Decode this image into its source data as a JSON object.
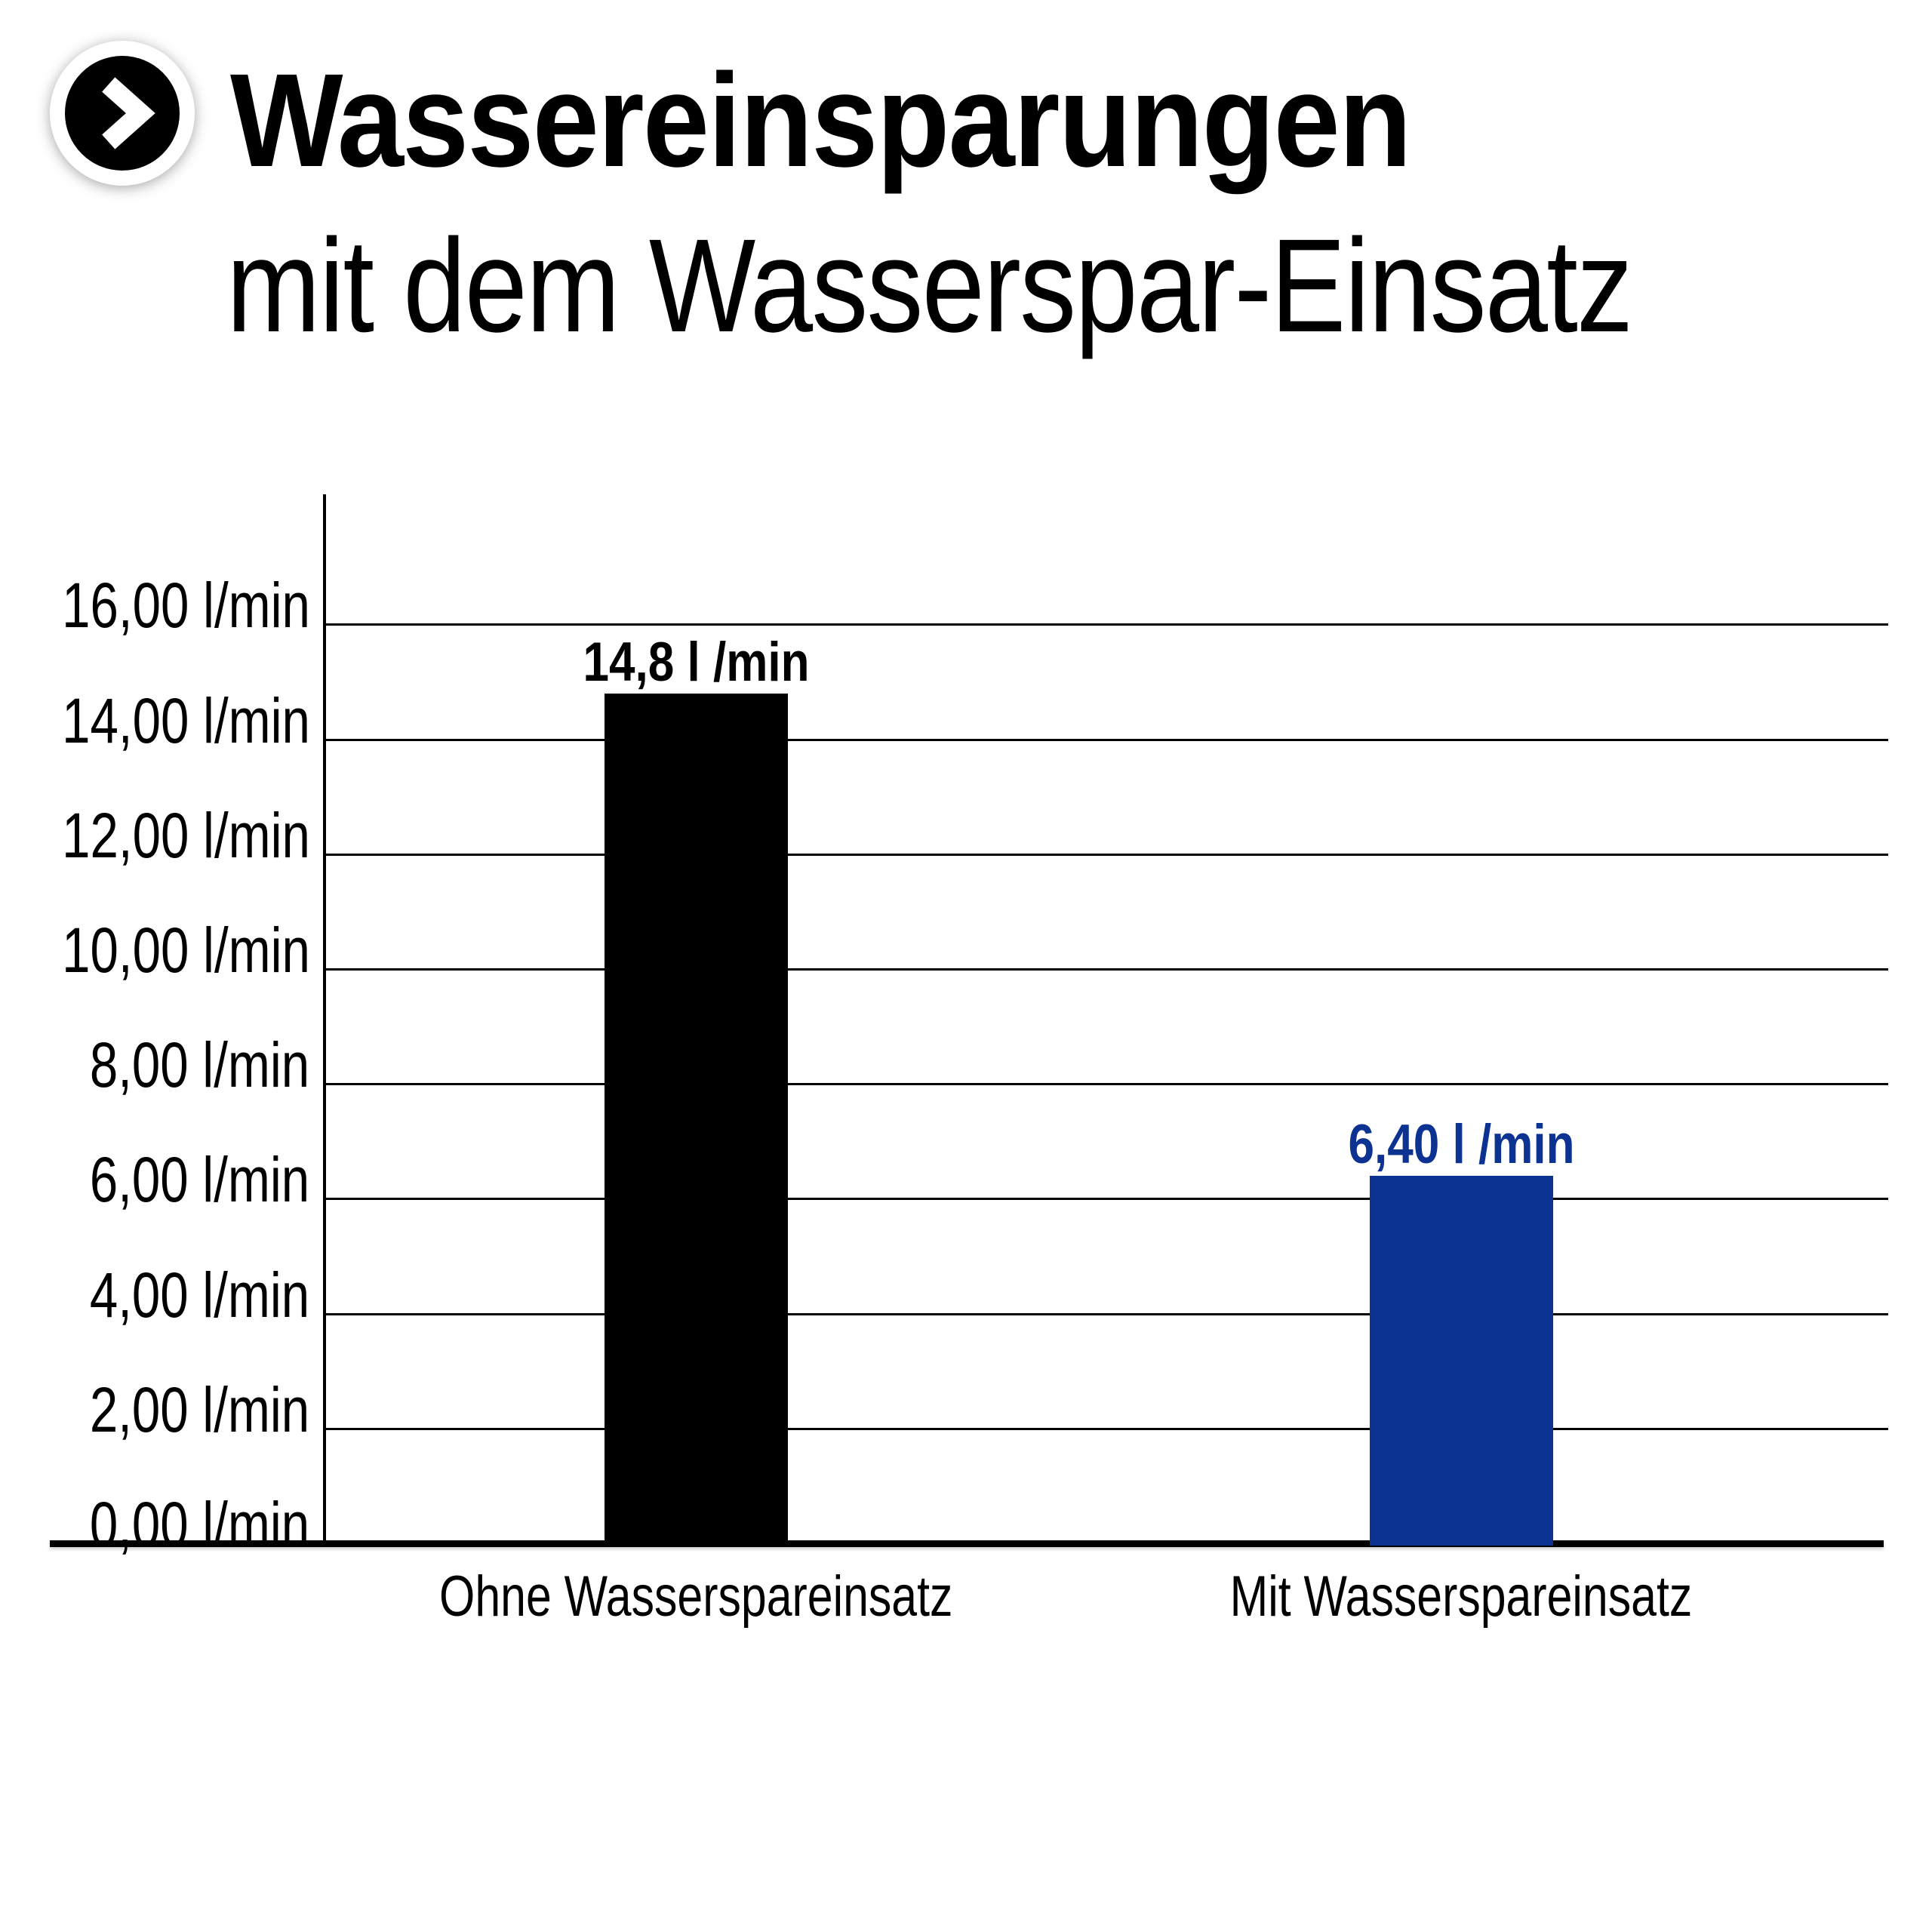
{
  "header": {
    "title_line1": "Wassereinsparungen",
    "title_line2": "mit dem Wasserspar-Einsatz",
    "icon": "chevron-right-circle-icon"
  },
  "colors": {
    "background": "#ffffff",
    "axis": "#000000",
    "bar_without_insert": "#000000",
    "bar_with_insert": "#0c3391",
    "value_label_without": "#000000",
    "value_label_with": "#0c3391"
  },
  "chart_data": {
    "type": "bar",
    "title": "Wassereinsparungen mit dem Wasserspar-Einsatz",
    "categories": [
      "Ohne Wasserspareinsatz",
      "Mit Wasserspareinsatz"
    ],
    "values": [
      14.8,
      6.4
    ],
    "bar_value_labels": [
      "14,8 l /min",
      "6,40 l /min"
    ],
    "bar_colors": [
      "#000000",
      "#0c3391"
    ],
    "value_label_colors": [
      "#000000",
      "#0c3391"
    ],
    "unit": "l/min",
    "xlabel": "",
    "ylabel": "",
    "ylim": [
      0,
      18.3
    ],
    "ytick_values": [
      0,
      2,
      4,
      6,
      8,
      10,
      12,
      14,
      16
    ],
    "ytick_labels": [
      "0,00 l/min",
      "2,00 l/min",
      "4,00 l/min",
      "6,00 l/min",
      "8,00 l/min",
      "10,00 l/min",
      "12,00 l/min",
      "14,00 l/min",
      "16,00 l/min"
    ],
    "grid": "horizontal",
    "legend": "none"
  }
}
